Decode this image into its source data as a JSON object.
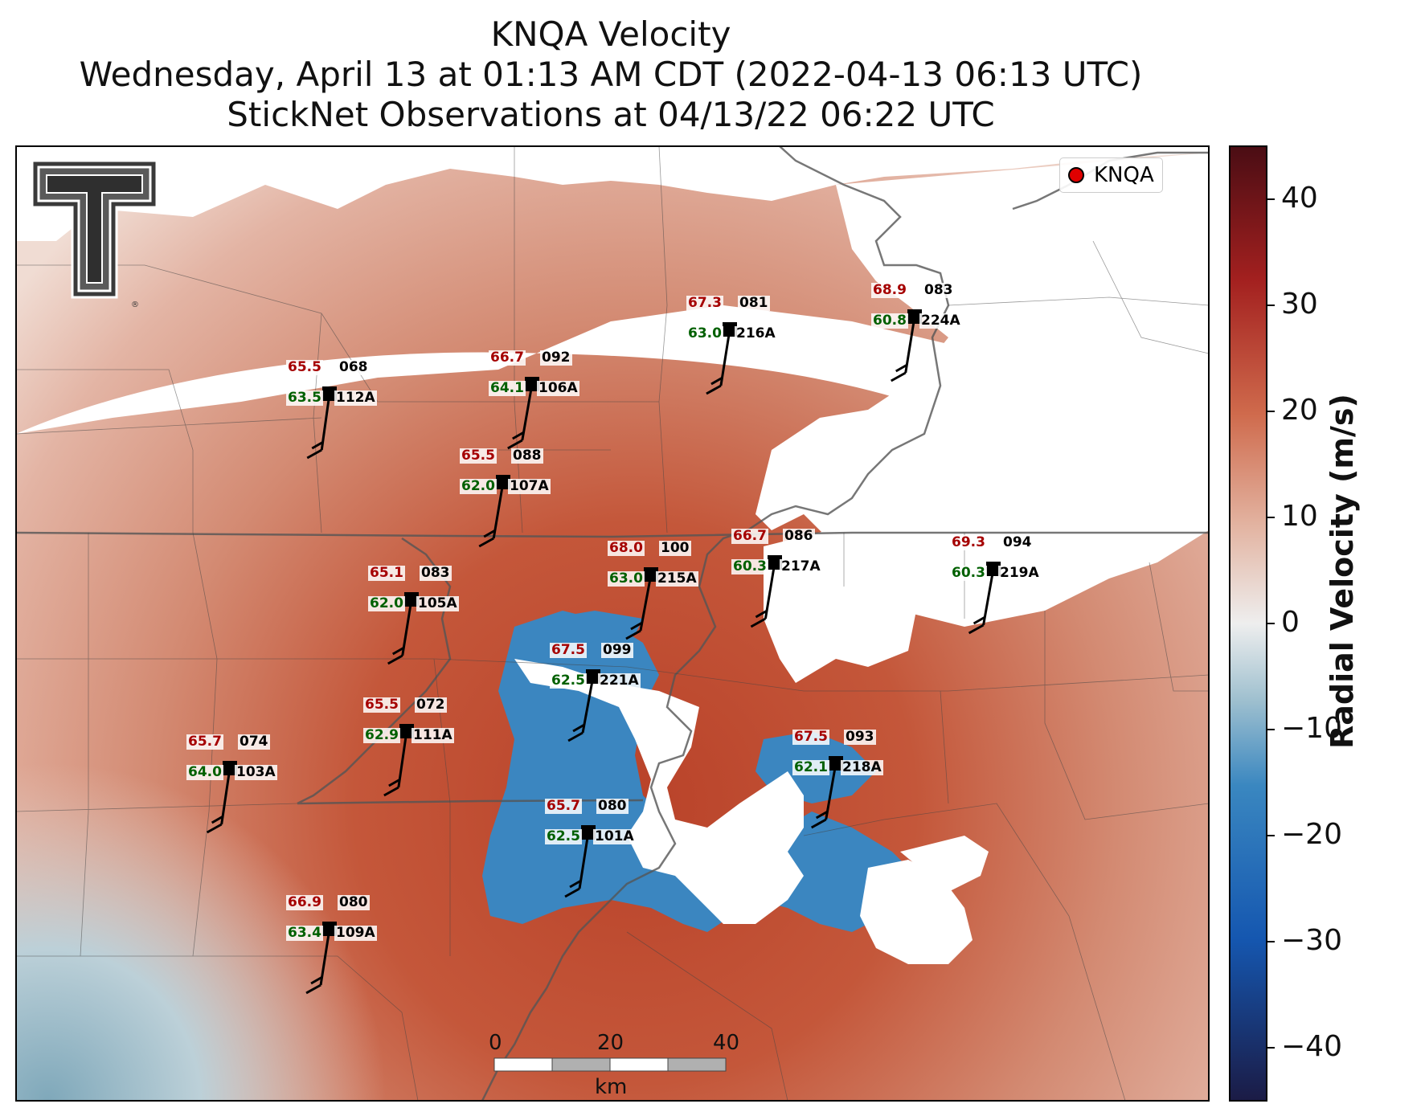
{
  "title": {
    "line1": "KNQA Velocity",
    "line2": "Wednesday, April 13 at 01:13 AM CDT (2022-04-13 06:13 UTC)",
    "line3": "StickNet Observations at 04/13/22 06:22 UTC"
  },
  "legend": {
    "label": "KNQA"
  },
  "colorbar": {
    "label": "Radial Velocity (m/s)",
    "ticks": [
      "40",
      "30",
      "20",
      "10",
      "0",
      "−10",
      "−20",
      "−30",
      "−40"
    ],
    "tick_values": [
      40,
      30,
      20,
      10,
      0,
      -10,
      -20,
      -30,
      -40
    ],
    "range": [
      -45,
      45
    ],
    "colors": [
      "#1b1b45",
      "#1557b0",
      "#3a87c0",
      "#9fc0cf",
      "#eeeeee",
      "#e3b5a3",
      "#cf6a4c",
      "#a3201f",
      "#4a0d14"
    ]
  },
  "scalebar": {
    "ticks": [
      "0",
      "20",
      "40"
    ],
    "unit": "km"
  },
  "logo": {
    "name": "Texas Tech Double T",
    "mark": "®"
  },
  "stations": [
    {
      "id": "224A",
      "temp": "68.9",
      "dew": "60.8",
      "dir": "083"
    },
    {
      "id": "216A",
      "temp": "67.3",
      "dew": "63.0",
      "dir": "081"
    },
    {
      "id": "112A",
      "temp": "65.5",
      "dew": "63.5",
      "dir": "068"
    },
    {
      "id": "106A",
      "temp": "66.7",
      "dew": "64.1",
      "dir": "092"
    },
    {
      "id": "107A",
      "temp": "65.5",
      "dew": "62.0",
      "dir": "088"
    },
    {
      "id": "215A",
      "temp": "68.0",
      "dew": "63.0",
      "dir": "100"
    },
    {
      "id": "217A",
      "temp": "66.7",
      "dew": "60.3",
      "dir": "086"
    },
    {
      "id": "219A",
      "temp": "69.3",
      "dew": "60.3",
      "dir": "094"
    },
    {
      "id": "105A",
      "temp": "65.1",
      "dew": "62.0",
      "dir": "083"
    },
    {
      "id": "221A",
      "temp": "67.5",
      "dew": "62.5",
      "dir": "099"
    },
    {
      "id": "111A",
      "temp": "65.5",
      "dew": "62.9",
      "dir": "072"
    },
    {
      "id": "103A",
      "temp": "65.7",
      "dew": "64.0",
      "dir": "074"
    },
    {
      "id": "218A",
      "temp": "67.5",
      "dew": "62.1",
      "dir": "093"
    },
    {
      "id": "101A",
      "temp": "65.7",
      "dew": "62.5",
      "dir": "080"
    },
    {
      "id": "109A",
      "temp": "66.9",
      "dew": "63.4",
      "dir": "080"
    }
  ]
}
